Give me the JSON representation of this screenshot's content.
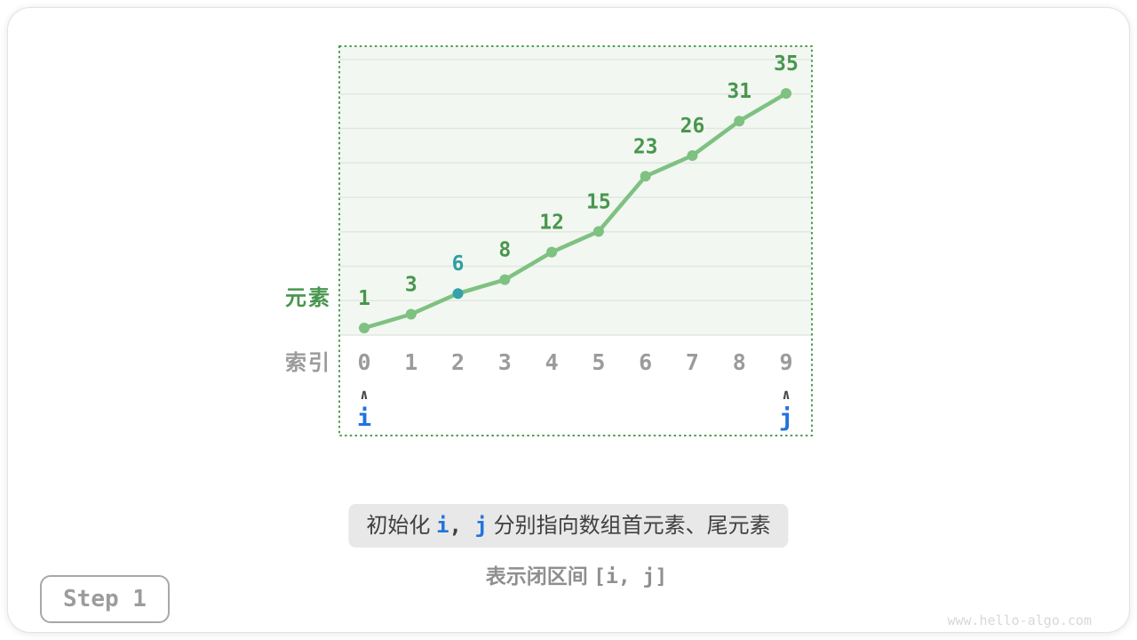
{
  "page": {
    "step_label": "Step 1",
    "watermark": "www.hello-algo.com"
  },
  "chart": {
    "type": "line",
    "y_axis_label": "元素",
    "x_axis_label": "索引",
    "categories": [
      0,
      1,
      2,
      3,
      4,
      5,
      6,
      7,
      8,
      9
    ],
    "values": [
      1,
      3,
      6,
      8,
      12,
      15,
      23,
      26,
      31,
      35
    ],
    "highlight_index": 2,
    "pointers": [
      {
        "label": "i",
        "index": 0
      },
      {
        "label": "j",
        "index": 9
      }
    ],
    "caret_glyph": "∧",
    "grid": true,
    "colors": {
      "line": "#7ec181",
      "point": "#7ec181",
      "highlight_point": "#35a2a7",
      "value_label": "#48964e",
      "highlight_value_label": "#2f9ea6",
      "index_label": "#9b9b9b",
      "y_axis_label": "#48964e",
      "x_axis_label": "#9b9b9b",
      "pointer": "#2273dd",
      "caret": "#4a4a4a",
      "border": "#4c9f50",
      "plot_bg": "#f2f7f1",
      "gridline": "#e3e7e2"
    }
  },
  "caption": {
    "part1": "初始化 ",
    "i": "i",
    "separator": ", ",
    "j": "j",
    "part2": " 分别指向数组首元素、尾元素"
  },
  "subcaption": {
    "part1": "表示闭区间 ",
    "interval": "[i, j]"
  }
}
